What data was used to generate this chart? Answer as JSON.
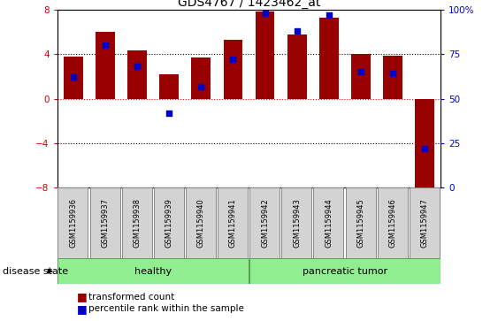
{
  "title": "GDS4767 / 1423462_at",
  "samples": [
    "GSM1159936",
    "GSM1159937",
    "GSM1159938",
    "GSM1159939",
    "GSM1159940",
    "GSM1159941",
    "GSM1159942",
    "GSM1159943",
    "GSM1159944",
    "GSM1159945",
    "GSM1159946",
    "GSM1159947"
  ],
  "transformed_count": [
    3.8,
    6.0,
    4.3,
    2.2,
    3.7,
    5.3,
    7.8,
    5.8,
    7.3,
    4.0,
    3.9,
    -8.5
  ],
  "percentile_rank": [
    62,
    80,
    68,
    42,
    57,
    72,
    98,
    88,
    97,
    65,
    64,
    22
  ],
  "bar_color": "#990000",
  "dot_color": "#0000cc",
  "ylim_left": [
    -8,
    8
  ],
  "ylim_right": [
    0,
    100
  ],
  "yticks_left": [
    -8,
    -4,
    0,
    4,
    8
  ],
  "yticks_right": [
    0,
    25,
    50,
    75,
    100
  ],
  "ytick_labels_right": [
    "0",
    "25",
    "50",
    "75",
    "100%"
  ],
  "healthy_count": 6,
  "tumor_count": 6,
  "group_labels": [
    "healthy",
    "pancreatic tumor"
  ],
  "disease_state_label": "disease state",
  "legend_bar_label": "transformed count",
  "legend_dot_label": "percentile rank within the sample",
  "bar_color_hex": "#990000",
  "dot_color_hex": "#0000cc",
  "left_tick_color": "#cc0000",
  "right_tick_color": "#0000cc",
  "title_fontsize": 10,
  "tick_fontsize": 7.5,
  "sample_fontsize": 6,
  "group_fontsize": 8,
  "legend_fontsize": 7.5,
  "disease_fontsize": 8
}
